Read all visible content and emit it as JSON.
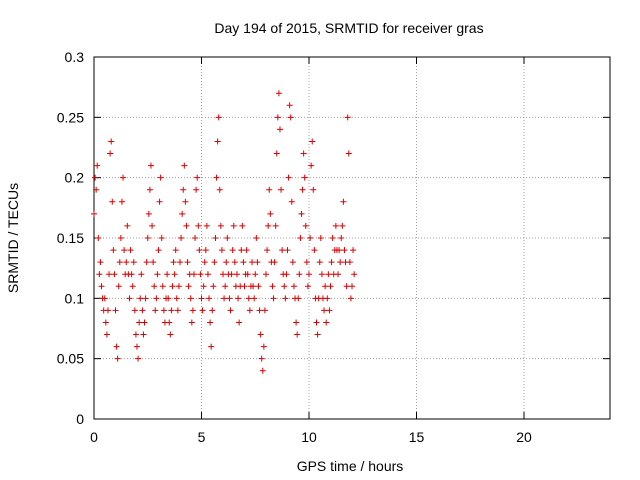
{
  "chart_data": {
    "type": "scatter",
    "title": "Day 194 of 2015, SRMTID for receiver gras",
    "xlabel": "GPS time / hours",
    "ylabel": "SRMTID / TECUs",
    "xlim": [
      0,
      24
    ],
    "ylim": [
      0,
      0.3
    ],
    "xticks": [
      "0",
      "5",
      "10",
      "15",
      "20"
    ],
    "xtick_values": [
      0,
      5,
      10,
      15,
      20
    ],
    "yticks": [
      "0",
      "0.05",
      "0.1",
      "0.15",
      "0.2",
      "0.25",
      "0.3"
    ],
    "ytick_values": [
      0,
      0.05,
      0.1,
      0.15,
      0.2,
      0.25,
      0.3
    ],
    "grid": true,
    "marker": "plus",
    "marker_color": "#e00000",
    "x_range_of_data": [
      0,
      12.1
    ],
    "series": [
      {
        "name": "",
        "points": [
          [
            0.0,
            0.17
          ],
          [
            0.05,
            0.2
          ],
          [
            0.1,
            0.19
          ],
          [
            0.15,
            0.21
          ],
          [
            0.2,
            0.15
          ],
          [
            0.25,
            0.12
          ],
          [
            0.3,
            0.13
          ],
          [
            0.35,
            0.11
          ],
          [
            0.4,
            0.1
          ],
          [
            0.45,
            0.09
          ],
          [
            0.5,
            0.1
          ],
          [
            0.55,
            0.08
          ],
          [
            0.6,
            0.07
          ],
          [
            0.65,
            0.09
          ],
          [
            0.7,
            0.12
          ],
          [
            0.75,
            0.22
          ],
          [
            0.8,
            0.23
          ],
          [
            0.85,
            0.18
          ],
          [
            0.9,
            0.14
          ],
          [
            0.95,
            0.12
          ],
          [
            1.0,
            0.09
          ],
          [
            1.05,
            0.06
          ],
          [
            1.1,
            0.05
          ],
          [
            1.15,
            0.11
          ],
          [
            1.2,
            0.13
          ],
          [
            1.25,
            0.15
          ],
          [
            1.3,
            0.18
          ],
          [
            1.35,
            0.2
          ],
          [
            1.4,
            0.14
          ],
          [
            1.45,
            0.12
          ],
          [
            1.5,
            0.13
          ],
          [
            1.55,
            0.16
          ],
          [
            1.6,
            0.12
          ],
          [
            1.65,
            0.1
          ],
          [
            1.7,
            0.14
          ],
          [
            1.75,
            0.12
          ],
          [
            1.8,
            0.11
          ],
          [
            1.85,
            0.13
          ],
          [
            1.9,
            0.09
          ],
          [
            1.95,
            0.07
          ],
          [
            2.0,
            0.06
          ],
          [
            2.05,
            0.05
          ],
          [
            2.1,
            0.08
          ],
          [
            2.15,
            0.1
          ],
          [
            2.2,
            0.12
          ],
          [
            2.25,
            0.09
          ],
          [
            2.3,
            0.07
          ],
          [
            2.35,
            0.08
          ],
          [
            2.4,
            0.1
          ],
          [
            2.45,
            0.13
          ],
          [
            2.5,
            0.15
          ],
          [
            2.55,
            0.17
          ],
          [
            2.6,
            0.19
          ],
          [
            2.65,
            0.21
          ],
          [
            2.7,
            0.16
          ],
          [
            2.75,
            0.13
          ],
          [
            2.8,
            0.11
          ],
          [
            2.85,
            0.09
          ],
          [
            2.9,
            0.1
          ],
          [
            2.95,
            0.12
          ],
          [
            3.0,
            0.14
          ],
          [
            3.05,
            0.18
          ],
          [
            3.1,
            0.2
          ],
          [
            3.15,
            0.15
          ],
          [
            3.2,
            0.11
          ],
          [
            3.25,
            0.09
          ],
          [
            3.3,
            0.08
          ],
          [
            3.35,
            0.1
          ],
          [
            3.4,
            0.12
          ],
          [
            3.45,
            0.1
          ],
          [
            3.5,
            0.08
          ],
          [
            3.55,
            0.07
          ],
          [
            3.6,
            0.09
          ],
          [
            3.65,
            0.11
          ],
          [
            3.7,
            0.13
          ],
          [
            3.75,
            0.12
          ],
          [
            3.8,
            0.14
          ],
          [
            3.85,
            0.1
          ],
          [
            3.9,
            0.09
          ],
          [
            3.95,
            0.11
          ],
          [
            4.0,
            0.13
          ],
          [
            4.05,
            0.15
          ],
          [
            4.1,
            0.17
          ],
          [
            4.15,
            0.19
          ],
          [
            4.2,
            0.21
          ],
          [
            4.25,
            0.18
          ],
          [
            4.3,
            0.16
          ],
          [
            4.35,
            0.13
          ],
          [
            4.4,
            0.11
          ],
          [
            4.45,
            0.12
          ],
          [
            4.5,
            0.1
          ],
          [
            4.55,
            0.08
          ],
          [
            4.6,
            0.09
          ],
          [
            4.65,
            0.12
          ],
          [
            4.7,
            0.15
          ],
          [
            4.75,
            0.19
          ],
          [
            4.8,
            0.2
          ],
          [
            4.85,
            0.16
          ],
          [
            4.9,
            0.14
          ],
          [
            4.95,
            0.12
          ],
          [
            5.0,
            0.1
          ],
          [
            5.05,
            0.09
          ],
          [
            5.1,
            0.11
          ],
          [
            5.15,
            0.13
          ],
          [
            5.2,
            0.14
          ],
          [
            5.25,
            0.16
          ],
          [
            5.3,
            0.12
          ],
          [
            5.35,
            0.1
          ],
          [
            5.4,
            0.08
          ],
          [
            5.45,
            0.06
          ],
          [
            5.5,
            0.09
          ],
          [
            5.55,
            0.11
          ],
          [
            5.6,
            0.13
          ],
          [
            5.65,
            0.15
          ],
          [
            5.7,
            0.2
          ],
          [
            5.75,
            0.23
          ],
          [
            5.8,
            0.25
          ],
          [
            5.85,
            0.19
          ],
          [
            5.9,
            0.16
          ],
          [
            5.95,
            0.14
          ],
          [
            6.0,
            0.12
          ],
          [
            6.05,
            0.1
          ],
          [
            6.1,
            0.11
          ],
          [
            6.15,
            0.13
          ],
          [
            6.2,
            0.15
          ],
          [
            6.25,
            0.12
          ],
          [
            6.3,
            0.1
          ],
          [
            6.35,
            0.09
          ],
          [
            6.4,
            0.12
          ],
          [
            6.45,
            0.14
          ],
          [
            6.5,
            0.16
          ],
          [
            6.55,
            0.13
          ],
          [
            6.6,
            0.11
          ],
          [
            6.65,
            0.12
          ],
          [
            6.7,
            0.1
          ],
          [
            6.75,
            0.08
          ],
          [
            6.8,
            0.11
          ],
          [
            6.85,
            0.14
          ],
          [
            6.9,
            0.16
          ],
          [
            6.95,
            0.13
          ],
          [
            7.0,
            0.11
          ],
          [
            7.05,
            0.12
          ],
          [
            7.1,
            0.14
          ],
          [
            7.15,
            0.12
          ],
          [
            7.2,
            0.1
          ],
          [
            7.25,
            0.09
          ],
          [
            7.3,
            0.11
          ],
          [
            7.35,
            0.13
          ],
          [
            7.4,
            0.11
          ],
          [
            7.45,
            0.1
          ],
          [
            7.5,
            0.12
          ],
          [
            7.55,
            0.15
          ],
          [
            7.6,
            0.13
          ],
          [
            7.65,
            0.11
          ],
          [
            7.7,
            0.09
          ],
          [
            7.75,
            0.07
          ],
          [
            7.8,
            0.05
          ],
          [
            7.85,
            0.04
          ],
          [
            7.9,
            0.06
          ],
          [
            7.95,
            0.09
          ],
          [
            8.0,
            0.12
          ],
          [
            8.05,
            0.14
          ],
          [
            8.1,
            0.16
          ],
          [
            8.15,
            0.19
          ],
          [
            8.2,
            0.17
          ],
          [
            8.25,
            0.13
          ],
          [
            8.3,
            0.11
          ],
          [
            8.35,
            0.1
          ],
          [
            8.4,
            0.13
          ],
          [
            8.45,
            0.16
          ],
          [
            8.5,
            0.22
          ],
          [
            8.55,
            0.25
          ],
          [
            8.6,
            0.27
          ],
          [
            8.65,
            0.24
          ],
          [
            8.7,
            0.19
          ],
          [
            8.75,
            0.14
          ],
          [
            8.8,
            0.12
          ],
          [
            8.85,
            0.11
          ],
          [
            8.9,
            0.1
          ],
          [
            8.95,
            0.12
          ],
          [
            9.0,
            0.14
          ],
          [
            9.05,
            0.2
          ],
          [
            9.1,
            0.26
          ],
          [
            9.15,
            0.25
          ],
          [
            9.2,
            0.18
          ],
          [
            9.25,
            0.13
          ],
          [
            9.3,
            0.11
          ],
          [
            9.35,
            0.1
          ],
          [
            9.4,
            0.08
          ],
          [
            9.45,
            0.07
          ],
          [
            9.5,
            0.1
          ],
          [
            9.55,
            0.12
          ],
          [
            9.6,
            0.15
          ],
          [
            9.65,
            0.17
          ],
          [
            9.7,
            0.19
          ],
          [
            9.75,
            0.22
          ],
          [
            9.8,
            0.2
          ],
          [
            9.85,
            0.16
          ],
          [
            9.9,
            0.13
          ],
          [
            9.95,
            0.11
          ],
          [
            10.0,
            0.12
          ],
          [
            10.05,
            0.15
          ],
          [
            10.1,
            0.21
          ],
          [
            10.15,
            0.23
          ],
          [
            10.2,
            0.19
          ],
          [
            10.25,
            0.14
          ],
          [
            10.3,
            0.1
          ],
          [
            10.35,
            0.08
          ],
          [
            10.4,
            0.07
          ],
          [
            10.45,
            0.1
          ],
          [
            10.5,
            0.13
          ],
          [
            10.55,
            0.15
          ],
          [
            10.6,
            0.12
          ],
          [
            10.65,
            0.1
          ],
          [
            10.7,
            0.09
          ],
          [
            10.75,
            0.11
          ],
          [
            10.8,
            0.08
          ],
          [
            10.85,
            0.1
          ],
          [
            10.9,
            0.12
          ],
          [
            10.95,
            0.09
          ],
          [
            11.0,
            0.11
          ],
          [
            11.05,
            0.13
          ],
          [
            11.1,
            0.15
          ],
          [
            11.15,
            0.12
          ],
          [
            11.2,
            0.14
          ],
          [
            11.25,
            0.16
          ],
          [
            11.3,
            0.14
          ],
          [
            11.35,
            0.12
          ],
          [
            11.4,
            0.14
          ],
          [
            11.45,
            0.13
          ],
          [
            11.5,
            0.15
          ],
          [
            11.55,
            0.16
          ],
          [
            11.6,
            0.18
          ],
          [
            11.65,
            0.14
          ],
          [
            11.7,
            0.13
          ],
          [
            11.75,
            0.11
          ],
          [
            11.8,
            0.25
          ],
          [
            11.85,
            0.22
          ],
          [
            11.9,
            0.13
          ],
          [
            11.95,
            0.1
          ],
          [
            12.0,
            0.11
          ],
          [
            12.05,
            0.14
          ],
          [
            12.1,
            0.12
          ]
        ]
      }
    ]
  }
}
